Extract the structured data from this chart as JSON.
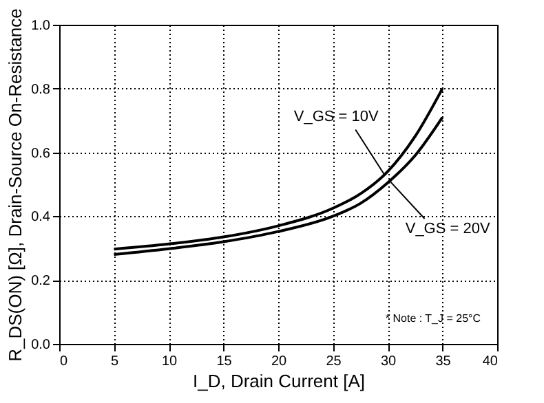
{
  "chart_data": {
    "type": "line",
    "xlabel": "I_D, Drain Current [A]",
    "ylabel": "R_DS(ON) [Ω], Drain-Source On-Resistance",
    "x": [
      5,
      10,
      15,
      20,
      25,
      27.5,
      30,
      32.5,
      35
    ],
    "series": [
      {
        "color": "#000000",
        "values": [
          0.297,
          0.313,
          0.335,
          0.37,
          0.425,
          0.47,
          0.54,
          0.65,
          0.8
        ]
      },
      {
        "color": "#000000",
        "values": [
          0.28,
          0.298,
          0.32,
          0.352,
          0.4,
          0.44,
          0.505,
          0.59,
          0.71
        ]
      }
    ],
    "annotations": [
      {
        "text": "V_GS = 10V",
        "x": 29.7,
        "y": 0.53
      },
      {
        "text": "V_GS = 20V",
        "x": 30.2,
        "y": 0.51
      },
      "* Note : T_J = 25°C"
    ],
    "xlim": [
      0,
      40
    ],
    "xticks": [
      0,
      5,
      10,
      15,
      20,
      25,
      30,
      35,
      40
    ],
    "ylim": [
      0,
      1.0
    ],
    "yticks": [
      {
        "value": 0,
        "label": "0.0"
      },
      0.2,
      0.4,
      0.6,
      0.8,
      {
        "value": 1.0,
        "label": "1.0"
      }
    ],
    "grid": true,
    "marker": "none",
    "line_style": "solid",
    "legend": false
  }
}
